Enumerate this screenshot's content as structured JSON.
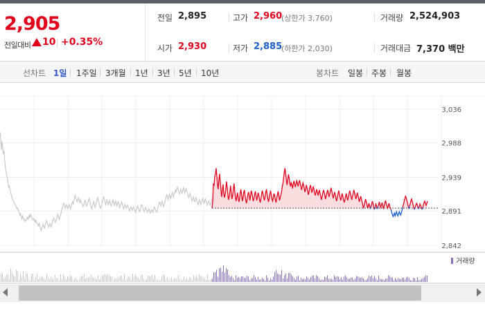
{
  "quote": {
    "current_price": "2,905",
    "change_label": "전일대비",
    "change_value": "10",
    "change_pct": "+0.35%",
    "prev_close_label": "전일",
    "prev_close": "2,895",
    "open_label": "시가",
    "open": "2,930",
    "high_label": "고가",
    "high": "2,960",
    "upper_limit": "(상한가 3,760)",
    "low_label": "저가",
    "low": "2,885",
    "lower_limit": "(하한가 2,030)",
    "volume_label": "거래량",
    "volume": "2,524,903",
    "amount_label": "거래대금",
    "amount": "7,370 백만"
  },
  "toolbar": {
    "line_chart_label": "선차트",
    "periods": [
      "1일",
      "1주일",
      "3개월",
      "1년",
      "3년",
      "5년",
      "10년"
    ],
    "active_period": "1일",
    "candle_chart_label": "봉차트",
    "candle_periods": [
      "일봉",
      "주봉",
      "월봉"
    ]
  },
  "colors": {
    "up": "#e0001b",
    "down": "#1a5dcc",
    "prev_series": "#c8c8c8",
    "volume": "#8a6fb8"
  },
  "icons": [
    "arrow-up-triangle-icon",
    "scroll-left-arrow-icon",
    "scroll-right-arrow-icon"
  ],
  "chart_data": {
    "type": "line",
    "y_tick_labels": [
      "3,036",
      "2,988",
      "2,939",
      "2,891",
      "2,842"
    ],
    "ylim": [
      2842,
      3036
    ],
    "baseline": 2895,
    "volume_legend": "거래량",
    "series": [
      {
        "values": [
          3003,
          2995,
          2978,
          2990,
          2982,
          2972,
          2977,
          2963,
          2955,
          2948,
          2942,
          2938,
          2930,
          2925,
          2927,
          2921,
          2918,
          2914,
          2910,
          2907,
          2906,
          2903,
          2901,
          2899,
          2898,
          2895,
          2896,
          2893,
          2891,
          2888,
          2885,
          2887,
          2883,
          2880,
          2884,
          2881,
          2878,
          2879,
          2876,
          2877,
          2880,
          2882,
          2879,
          2882,
          2885,
          2881,
          2886,
          2884,
          2882,
          2879,
          2878,
          2880,
          2878,
          2875,
          2878,
          2875,
          2873,
          2872,
          2870,
          2873,
          2869,
          2866,
          2863,
          2866,
          2869,
          2872,
          2869,
          2866,
          2871,
          2874,
          2877,
          2874,
          2871,
          2868,
          2870,
          2873,
          2870,
          2868,
          2872,
          2876,
          2879,
          2881,
          2878,
          2875,
          2877,
          2880,
          2884,
          2886,
          2882,
          2879,
          2882,
          2885,
          2889,
          2893,
          2896,
          2899,
          2902,
          2899,
          2895,
          2897,
          2900,
          2897,
          2894,
          2897,
          2900,
          2897,
          2894,
          2897,
          2901,
          2904,
          2901,
          2905,
          2909,
          2913,
          2910,
          2907,
          2904,
          2907,
          2910,
          2906,
          2903,
          2907,
          2905,
          2902,
          2900,
          2897,
          2899,
          2903,
          2907,
          2903,
          2898,
          2900,
          2902,
          2906,
          2909,
          2905,
          2901,
          2897,
          2894,
          2897,
          2901,
          2904,
          2900,
          2896,
          2899,
          2903,
          2907,
          2910,
          2906,
          2902,
          2898,
          2895,
          2897,
          2900,
          2904,
          2908,
          2912,
          2908,
          2904,
          2900,
          2903,
          2907,
          2904,
          2900,
          2903,
          2906,
          2902,
          2898,
          2900,
          2904,
          2907,
          2903,
          2899,
          2902,
          2905,
          2901,
          2898,
          2902,
          2904,
          2900,
          2896,
          2898,
          2901,
          2904,
          2901,
          2897,
          2894,
          2897,
          2900,
          2898,
          2895,
          2897,
          2899,
          2896,
          2893,
          2891,
          2894,
          2897,
          2895,
          2892,
          2895,
          2897,
          2894,
          2891,
          2889,
          2892,
          2895,
          2898,
          2895,
          2892,
          2890,
          2893,
          2897,
          2900,
          2898,
          2895,
          2892,
          2890,
          2893,
          2896,
          2894,
          2891,
          2889,
          2892,
          2894,
          2891,
          2888,
          2890,
          2893,
          2891,
          2889,
          2893,
          2897,
          2895,
          2892,
          2890,
          2889,
          2893,
          2897,
          2901,
          2904,
          2901,
          2898,
          2902,
          2905,
          2901,
          2897,
          2900,
          2903,
          2907,
          2911,
          2914,
          2910,
          2907,
          2911,
          2915,
          2912,
          2909,
          2913,
          2917,
          2914,
          2911,
          2915,
          2918,
          2921,
          2918,
          2922,
          2925,
          2922,
          2918,
          2915,
          2918,
          2922,
          2919,
          2916,
          2920,
          2924,
          2921,
          2917,
          2920,
          2923,
          2920,
          2916,
          2913,
          2910,
          2913,
          2916,
          2912,
          2909,
          2905,
          2908,
          2911,
          2907,
          2904,
          2907,
          2910,
          2906,
          2903,
          2900,
          2903,
          2907,
          2904,
          2900,
          2903,
          2906,
          2909,
          2906,
          2902,
          2905,
          2908,
          2905,
          2902,
          2899,
          2902,
          2905,
          2903,
          2899,
          2901,
          2905,
          2909
        ]
      },
      {
        "values": [
          2895,
          2905,
          2930,
          2928,
          2940,
          2944,
          2952,
          2940,
          2929,
          2922,
          2935,
          2944,
          2933,
          2922,
          2911,
          2920,
          2929,
          2918,
          2910,
          2914,
          2922,
          2933,
          2925,
          2914,
          2907,
          2911,
          2919,
          2927,
          2916,
          2908,
          2913,
          2922,
          2930,
          2919,
          2910,
          2905,
          2911,
          2917,
          2910,
          2904,
          2908,
          2916,
          2922,
          2914,
          2905,
          2909,
          2917,
          2921,
          2913,
          2906,
          2902,
          2908,
          2914,
          2918,
          2913,
          2906,
          2912,
          2920,
          2916,
          2910,
          2905,
          2909,
          2915,
          2919,
          2912,
          2906,
          2911,
          2917,
          2913,
          2907,
          2903,
          2908,
          2914,
          2920,
          2916,
          2911,
          2906,
          2910,
          2917,
          2922,
          2915,
          2909,
          2904,
          2909,
          2915,
          2920,
          2914,
          2908,
          2905,
          2910,
          2916,
          2913,
          2907,
          2903,
          2909,
          2914,
          2919,
          2913,
          2906,
          2910,
          2914,
          2918,
          2925,
          2930,
          2938,
          2946,
          2952,
          2944,
          2935,
          2928,
          2935,
          2943,
          2938,
          2931,
          2926,
          2932,
          2928,
          2923,
          2929,
          2934,
          2930,
          2925,
          2929,
          2934,
          2931,
          2926,
          2930,
          2935,
          2931,
          2926,
          2921,
          2926,
          2931,
          2928,
          2923,
          2918,
          2922,
          2928,
          2924,
          2919,
          2914,
          2919,
          2924,
          2928,
          2923,
          2917,
          2921,
          2926,
          2922,
          2917,
          2913,
          2917,
          2922,
          2918,
          2913,
          2917,
          2921,
          2916,
          2911,
          2907,
          2912,
          2917,
          2921,
          2917,
          2912,
          2908,
          2913,
          2917,
          2921,
          2916,
          2911,
          2915,
          2920,
          2924,
          2919,
          2914,
          2909,
          2913,
          2918,
          2914,
          2909,
          2905,
          2910,
          2915,
          2920,
          2915,
          2910,
          2906,
          2911,
          2916,
          2912,
          2907,
          2903,
          2907,
          2912,
          2916,
          2911,
          2906,
          2910,
          2915,
          2920,
          2916,
          2911,
          2907,
          2912,
          2916,
          2921,
          2917,
          2912,
          2908,
          2912,
          2917,
          2913,
          2909,
          2904,
          2908,
          2912,
          2908,
          2904,
          2899,
          2895,
          2899,
          2903,
          2908,
          2904,
          2900,
          2895,
          2898,
          2902,
          2898,
          2894,
          2897,
          2901,
          2905,
          2901,
          2897,
          2893,
          2897,
          2901,
          2898,
          2894,
          2897,
          2900,
          2904,
          2900,
          2896,
          2899,
          2903,
          2899,
          2895,
          2898,
          2902,
          2906,
          2902,
          2898,
          2895,
          2898,
          2902,
          2898,
          2895,
          2893,
          2889,
          2886,
          2883,
          2885,
          2888,
          2884,
          2887,
          2890,
          2886,
          2884,
          2887,
          2890,
          2887,
          2885,
          2888,
          2892,
          2896,
          2900,
          2904,
          2908,
          2912,
          2910,
          2906,
          2902,
          2898,
          2894,
          2898,
          2902,
          2906,
          2908,
          2904,
          2900,
          2896,
          2893,
          2896,
          2899,
          2902,
          2900,
          2897,
          2894,
          2897,
          2901,
          2899,
          2896,
          2893,
          2896,
          2899,
          2903,
          2905,
          2902,
          2899,
          2902,
          2905
        ]
      }
    ]
  }
}
